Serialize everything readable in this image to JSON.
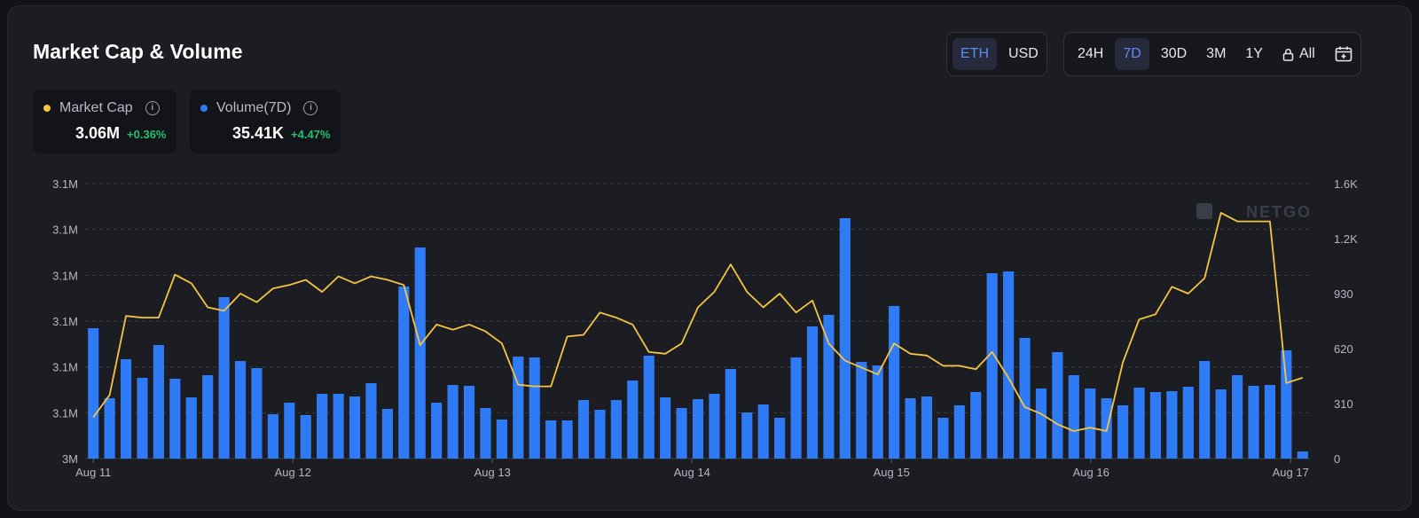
{
  "header": {
    "title": "Market Cap & Volume",
    "currency_options": [
      "ETH",
      "USD"
    ],
    "currency_selected": "ETH",
    "range_options": [
      "24H",
      "7D",
      "30D",
      "3M",
      "1Y",
      "All"
    ],
    "range_selected": "7D",
    "calendar_icon": "calendar-icon",
    "lock_icon": "lock-icon"
  },
  "stats": {
    "market_cap": {
      "label": "Market Cap",
      "value": "3.06M",
      "change": "+0.36%",
      "color": "#f5c542"
    },
    "volume": {
      "label": "Volume(7D)",
      "value": "35.41K",
      "change": "+4.47%",
      "color": "#2f7bf5"
    }
  },
  "watermark": "NETGO",
  "colors": {
    "bar": "#2f7bf5",
    "line": "#f5c542",
    "positive": "#23c06b",
    "accent": "#5b8def"
  },
  "chart_data": {
    "type": "bar",
    "title": "Market Cap & Volume",
    "x_ticks": [
      "Aug 11",
      "Aug 12",
      "Aug 13",
      "Aug 14",
      "Aug 15",
      "Aug 16",
      "Aug 17"
    ],
    "left_axis": {
      "ticks": [
        "3M",
        "3.1M",
        "3.1M",
        "3.1M",
        "3.1M",
        "3.1M",
        "3.1M"
      ],
      "range": [
        0,
        1.6
      ]
    },
    "right_axis": {
      "ticks": [
        "0",
        "310",
        "620",
        "930",
        "1.2K",
        "1.6K"
      ],
      "tick_values": [
        0,
        310,
        620,
        930,
        1240,
        1550
      ],
      "range": [
        0,
        1550
      ]
    },
    "grid": true,
    "series": [
      {
        "name": "Volume(7D)",
        "kind": "bar",
        "axis": "right",
        "values": [
          735,
          340,
          560,
          455,
          640,
          450,
          345,
          470,
          910,
          550,
          510,
          250,
          315,
          245,
          365,
          365,
          350,
          425,
          280,
          970,
          1190,
          315,
          415,
          410,
          285,
          220,
          575,
          570,
          215,
          215,
          330,
          275,
          330,
          440,
          580,
          345,
          285,
          335,
          365,
          505,
          260,
          305,
          230,
          570,
          745,
          810,
          1355,
          545,
          525,
          860,
          340,
          350,
          230,
          300,
          375,
          1045,
          1055,
          680,
          395,
          600,
          470,
          395,
          340,
          300,
          400,
          375,
          380,
          405,
          550,
          390,
          470,
          410,
          415,
          610,
          40
        ],
        "y_axis_label": ""
      },
      {
        "name": "Market Cap",
        "kind": "line",
        "axis": "left",
        "values": [
          0.24,
          0.37,
          0.83,
          0.82,
          0.82,
          1.07,
          1.02,
          0.88,
          0.86,
          0.96,
          0.91,
          0.99,
          1.01,
          1.04,
          0.97,
          1.06,
          1.02,
          1.06,
          1.04,
          1.01,
          0.66,
          0.78,
          0.75,
          0.78,
          0.74,
          0.67,
          0.43,
          0.42,
          0.42,
          0.71,
          0.72,
          0.85,
          0.82,
          0.78,
          0.62,
          0.61,
          0.67,
          0.88,
          0.97,
          1.13,
          0.97,
          0.88,
          0.96,
          0.85,
          0.92,
          0.67,
          0.57,
          0.53,
          0.49,
          0.67,
          0.61,
          0.6,
          0.54,
          0.54,
          0.52,
          0.62,
          0.47,
          0.3,
          0.26,
          0.2,
          0.16,
          0.18,
          0.16,
          0.56,
          0.81,
          0.84,
          1.0,
          0.96,
          1.05,
          1.43,
          1.38,
          1.38,
          1.38,
          0.44,
          0.47
        ],
        "y_axis_label": ""
      }
    ]
  }
}
